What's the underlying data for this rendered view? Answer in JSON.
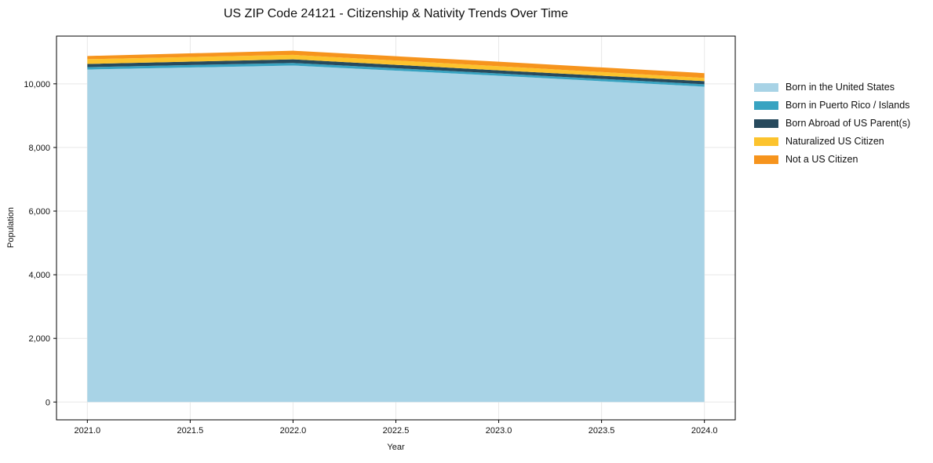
{
  "chart_data": {
    "type": "area",
    "stacked": true,
    "title": "US ZIP Code 24121 - Citizenship & Nativity Trends Over Time",
    "xlabel": "Year",
    "ylabel": "Population",
    "x": [
      2021,
      2022,
      2023,
      2024
    ],
    "series": [
      {
        "name": "Born in the United States",
        "color": "#a8d3e6",
        "values": [
          10450,
          10575,
          10255,
          9910
        ]
      },
      {
        "name": "Born in Puerto Rico / Islands",
        "color": "#38a3c1",
        "values": [
          75,
          80,
          70,
          75
        ]
      },
      {
        "name": "Born Abroad of US Parent(s)",
        "color": "#274a5d",
        "values": [
          100,
          115,
          100,
          100
        ]
      },
      {
        "name": "Naturalized US Citizen",
        "color": "#fcc32d",
        "values": [
          150,
          140,
          130,
          100
        ]
      },
      {
        "name": "Not a US Citizen",
        "color": "#f6941d",
        "values": [
          100,
          130,
          140,
          150
        ]
      }
    ],
    "x_ticks": [
      2021.0,
      2021.5,
      2022.0,
      2022.5,
      2023.0,
      2023.5,
      2024.0
    ],
    "x_tick_labels": [
      "2021.0",
      "2021.5",
      "2022.0",
      "2022.5",
      "2023.0",
      "2023.5",
      "2024.0"
    ],
    "y_ticks": [
      0,
      2000,
      4000,
      6000,
      8000,
      10000
    ],
    "y_tick_labels": [
      "0",
      "2,000",
      "4,000",
      "6,000",
      "8,000",
      "10,000"
    ],
    "xlim": [
      2020.85,
      2024.15
    ],
    "ylim": [
      -560,
      11500
    ],
    "grid": true,
    "grid_color": "#e8e8e8",
    "axis_color": "#000000",
    "legend_position": "right"
  }
}
